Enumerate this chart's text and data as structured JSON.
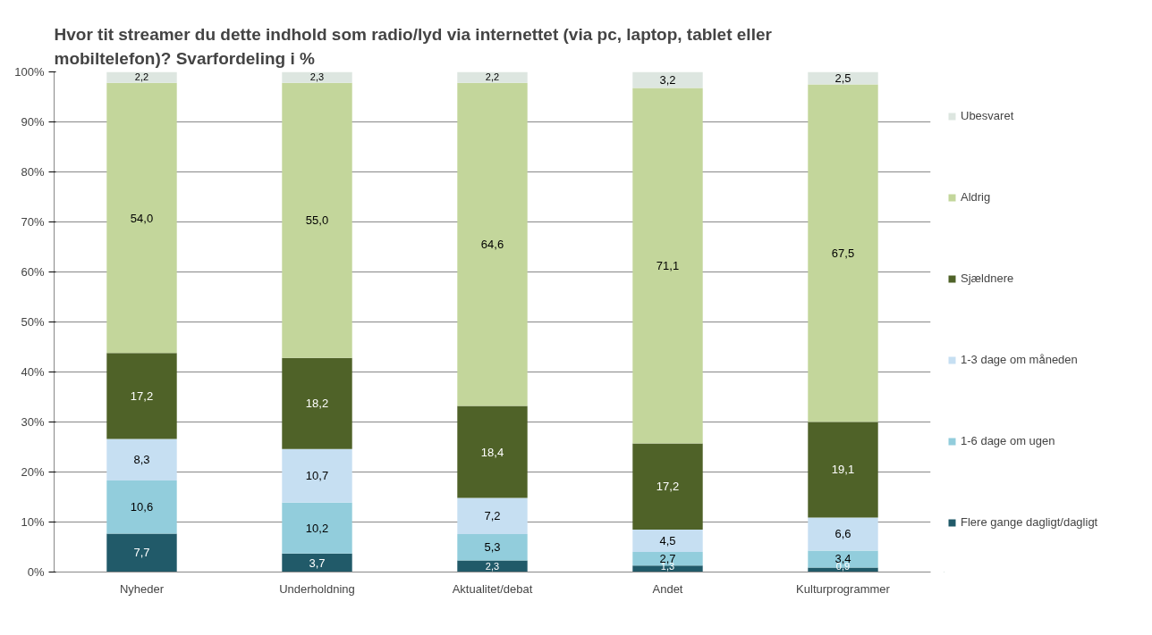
{
  "chart_data": {
    "type": "bar",
    "stacked": true,
    "title": "Hvor tit streamer du dette indhold som radio/lyd via internettet (via pc, laptop, tablet eller mobiltelefon)? Svarfordeling i %",
    "categories": [
      "Nyheder",
      "Underholdning",
      "Aktualitet/debat",
      "Andet",
      "Kulturprogrammer"
    ],
    "series": [
      {
        "name": "Flere gange dagligt/dagligt",
        "color": "#215a69",
        "values": [
          7.7,
          3.7,
          2.3,
          1.3,
          0.9
        ],
        "value_labels": [
          "7,7",
          "3,7",
          "2,3",
          "1,3",
          "0,9"
        ]
      },
      {
        "name": "1-6 dage om ugen",
        "color": "#92cddc",
        "values": [
          10.6,
          10.2,
          5.3,
          2.7,
          3.4
        ],
        "value_labels": [
          "10,6",
          "10,2",
          "5,3",
          "2,7",
          "3,4"
        ]
      },
      {
        "name": "1-3 dage om måneden",
        "color": "#c6dff2",
        "values": [
          8.3,
          10.7,
          7.2,
          4.5,
          6.6
        ],
        "value_labels": [
          "8,3",
          "10,7",
          "7,2",
          "4,5",
          "6,6"
        ]
      },
      {
        "name": "Sjældnere",
        "color": "#4f6228",
        "values": [
          17.2,
          18.2,
          18.4,
          17.2,
          19.1
        ],
        "value_labels": [
          "17,2",
          "18,2",
          "18,4",
          "17,2",
          "19,1"
        ]
      },
      {
        "name": "Aldrig",
        "color": "#c3d69b",
        "values": [
          54.0,
          55.0,
          64.6,
          71.1,
          67.5
        ],
        "value_labels": [
          "54,0",
          "55,0",
          "64,6",
          "71,1",
          "67,5"
        ]
      },
      {
        "name": "Ubesvaret",
        "color": "#dde6e0",
        "values": [
          2.2,
          2.3,
          2.2,
          3.2,
          2.5
        ],
        "value_labels": [
          "2,2",
          "2,3",
          "2,2",
          "3,2",
          "2,5"
        ]
      }
    ],
    "ylim": [
      0,
      100
    ],
    "yticks": [
      {
        "value": 0,
        "label": "0%"
      },
      {
        "value": 10,
        "label": "10%"
      },
      {
        "value": 20,
        "label": "20%"
      },
      {
        "value": 30,
        "label": "30%"
      },
      {
        "value": 40,
        "label": "40%"
      },
      {
        "value": 50,
        "label": "50%"
      },
      {
        "value": 60,
        "label": "60%"
      },
      {
        "value": 70,
        "label": "70%"
      },
      {
        "value": 80,
        "label": "80%"
      },
      {
        "value": 90,
        "label": "90%"
      },
      {
        "value": 100,
        "label": "100%"
      }
    ],
    "grid": "y",
    "legend": "right"
  }
}
